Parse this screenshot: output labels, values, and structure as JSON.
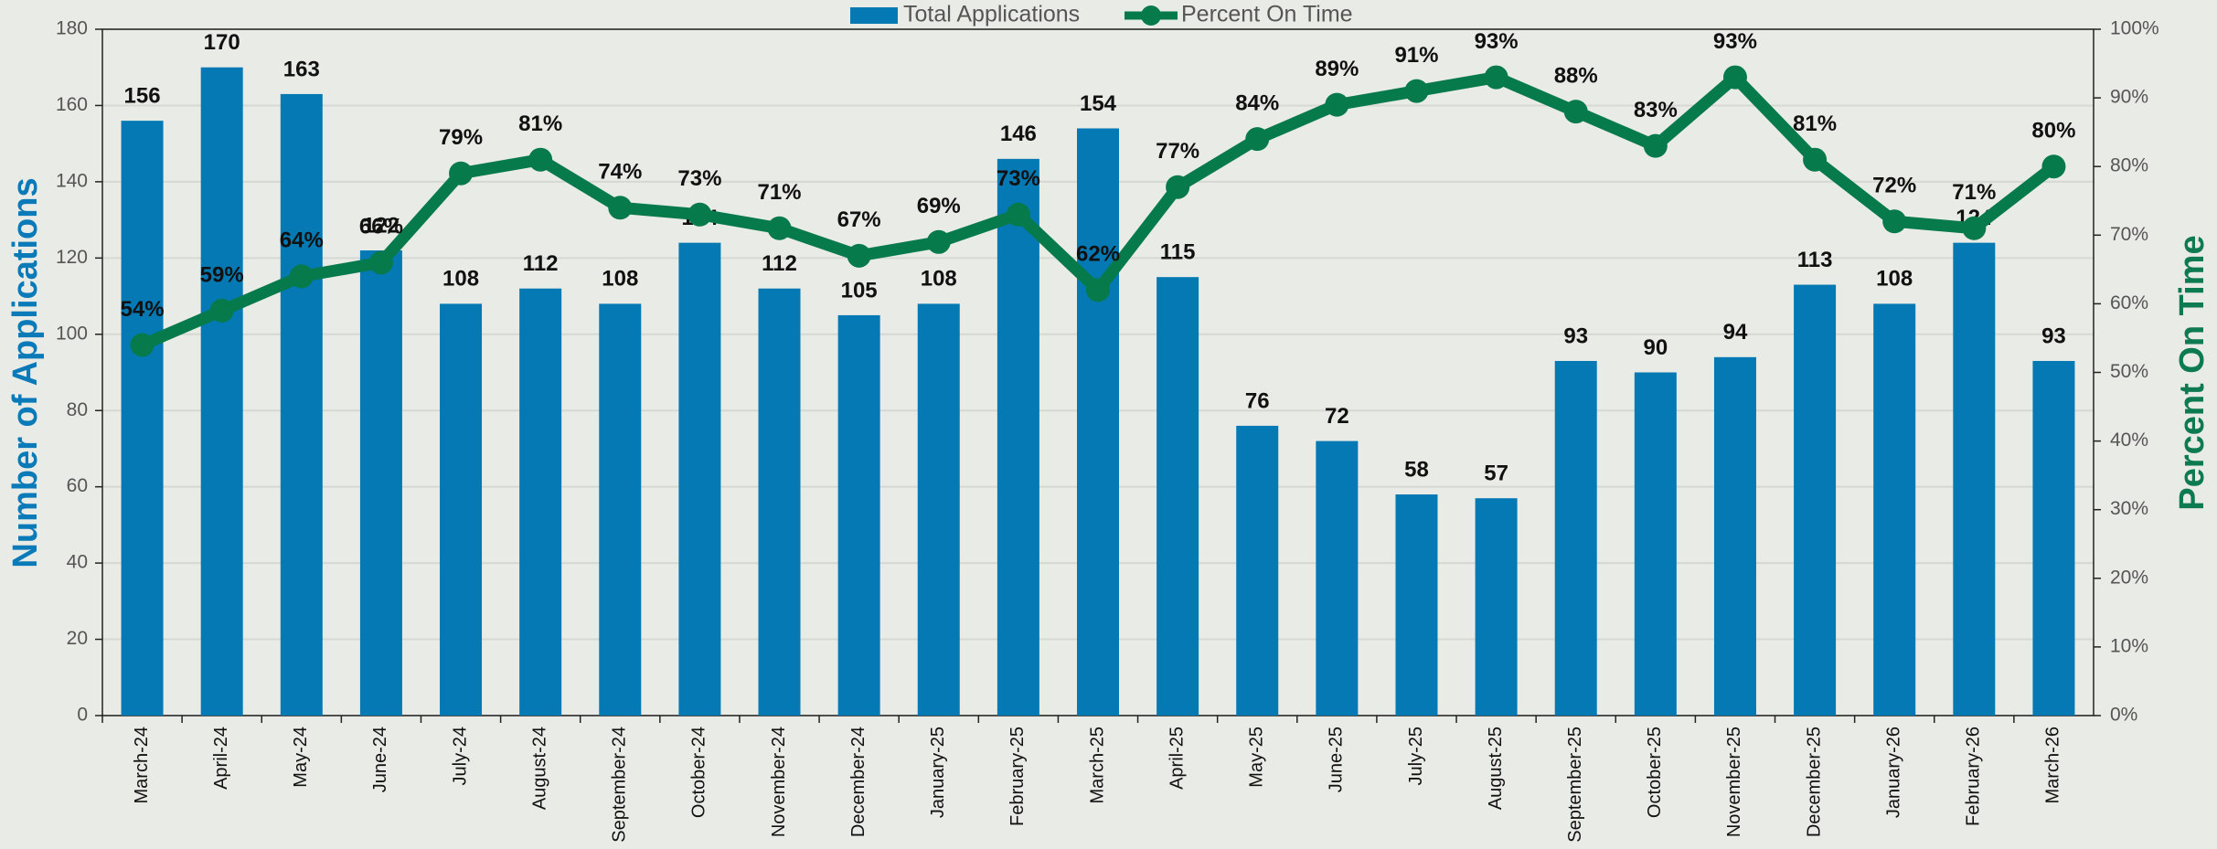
{
  "chart_data": {
    "type": "combo",
    "y_label": "Number of Applications",
    "y2_label": "Percent On Time",
    "categories": [
      "March-24",
      "April-24",
      "May-24",
      "June-24",
      "July-24",
      "August-24",
      "September-24",
      "October-24",
      "November-24",
      "December-24",
      "January-25",
      "February-25",
      "March-25",
      "April-25",
      "May-25",
      "June-25",
      "July-25",
      "August-25",
      "September-25",
      "October-25",
      "November-25",
      "December-25",
      "January-26",
      "February-26",
      "March-26"
    ],
    "series": [
      {
        "name": "Total Applications",
        "type": "bar",
        "color": "#0479b3",
        "values": [
          156,
          170,
          163,
          122,
          108,
          112,
          108,
          124,
          112,
          105,
          108,
          146,
          154,
          115,
          76,
          72,
          58,
          57,
          93,
          90,
          94,
          113,
          108,
          124,
          93
        ]
      },
      {
        "name": "Percent On Time",
        "type": "line",
        "axis": "y2",
        "color": "#077a4b",
        "values": [
          54,
          59,
          64,
          66,
          79,
          81,
          74,
          73,
          71,
          67,
          69,
          73,
          62,
          77,
          84,
          89,
          91,
          93,
          88,
          83,
          93,
          81,
          72,
          71,
          80
        ],
        "value_labels": [
          "54%",
          "59%",
          "64%",
          "66%",
          "79%",
          "81%",
          "74%",
          "73%",
          "71%",
          "67%",
          "69%",
          "73%",
          "62%",
          "77%",
          "84%",
          "89%",
          "91%",
          "93%",
          "88%",
          "83%",
          "93%",
          "81%",
          "72%",
          "71%",
          "80%"
        ]
      }
    ],
    "ylim": [
      0,
      180
    ],
    "yticks": [
      0,
      20,
      40,
      60,
      80,
      100,
      120,
      140,
      160,
      180
    ],
    "y2lim": [
      0,
      100
    ],
    "y2ticks": [
      {
        "value": 0,
        "label": "0%"
      },
      {
        "value": 10,
        "label": "10%"
      },
      {
        "value": 20,
        "label": "20%"
      },
      {
        "value": 30,
        "label": "30%"
      },
      {
        "value": 40,
        "label": "40%"
      },
      {
        "value": 50,
        "label": "50%"
      },
      {
        "value": 60,
        "label": "60%"
      },
      {
        "value": 70,
        "label": "70%"
      },
      {
        "value": 80,
        "label": "80%"
      },
      {
        "value": 90,
        "label": "90%"
      },
      {
        "value": 100,
        "label": "100%"
      }
    ],
    "grid": true,
    "legend": "top"
  }
}
